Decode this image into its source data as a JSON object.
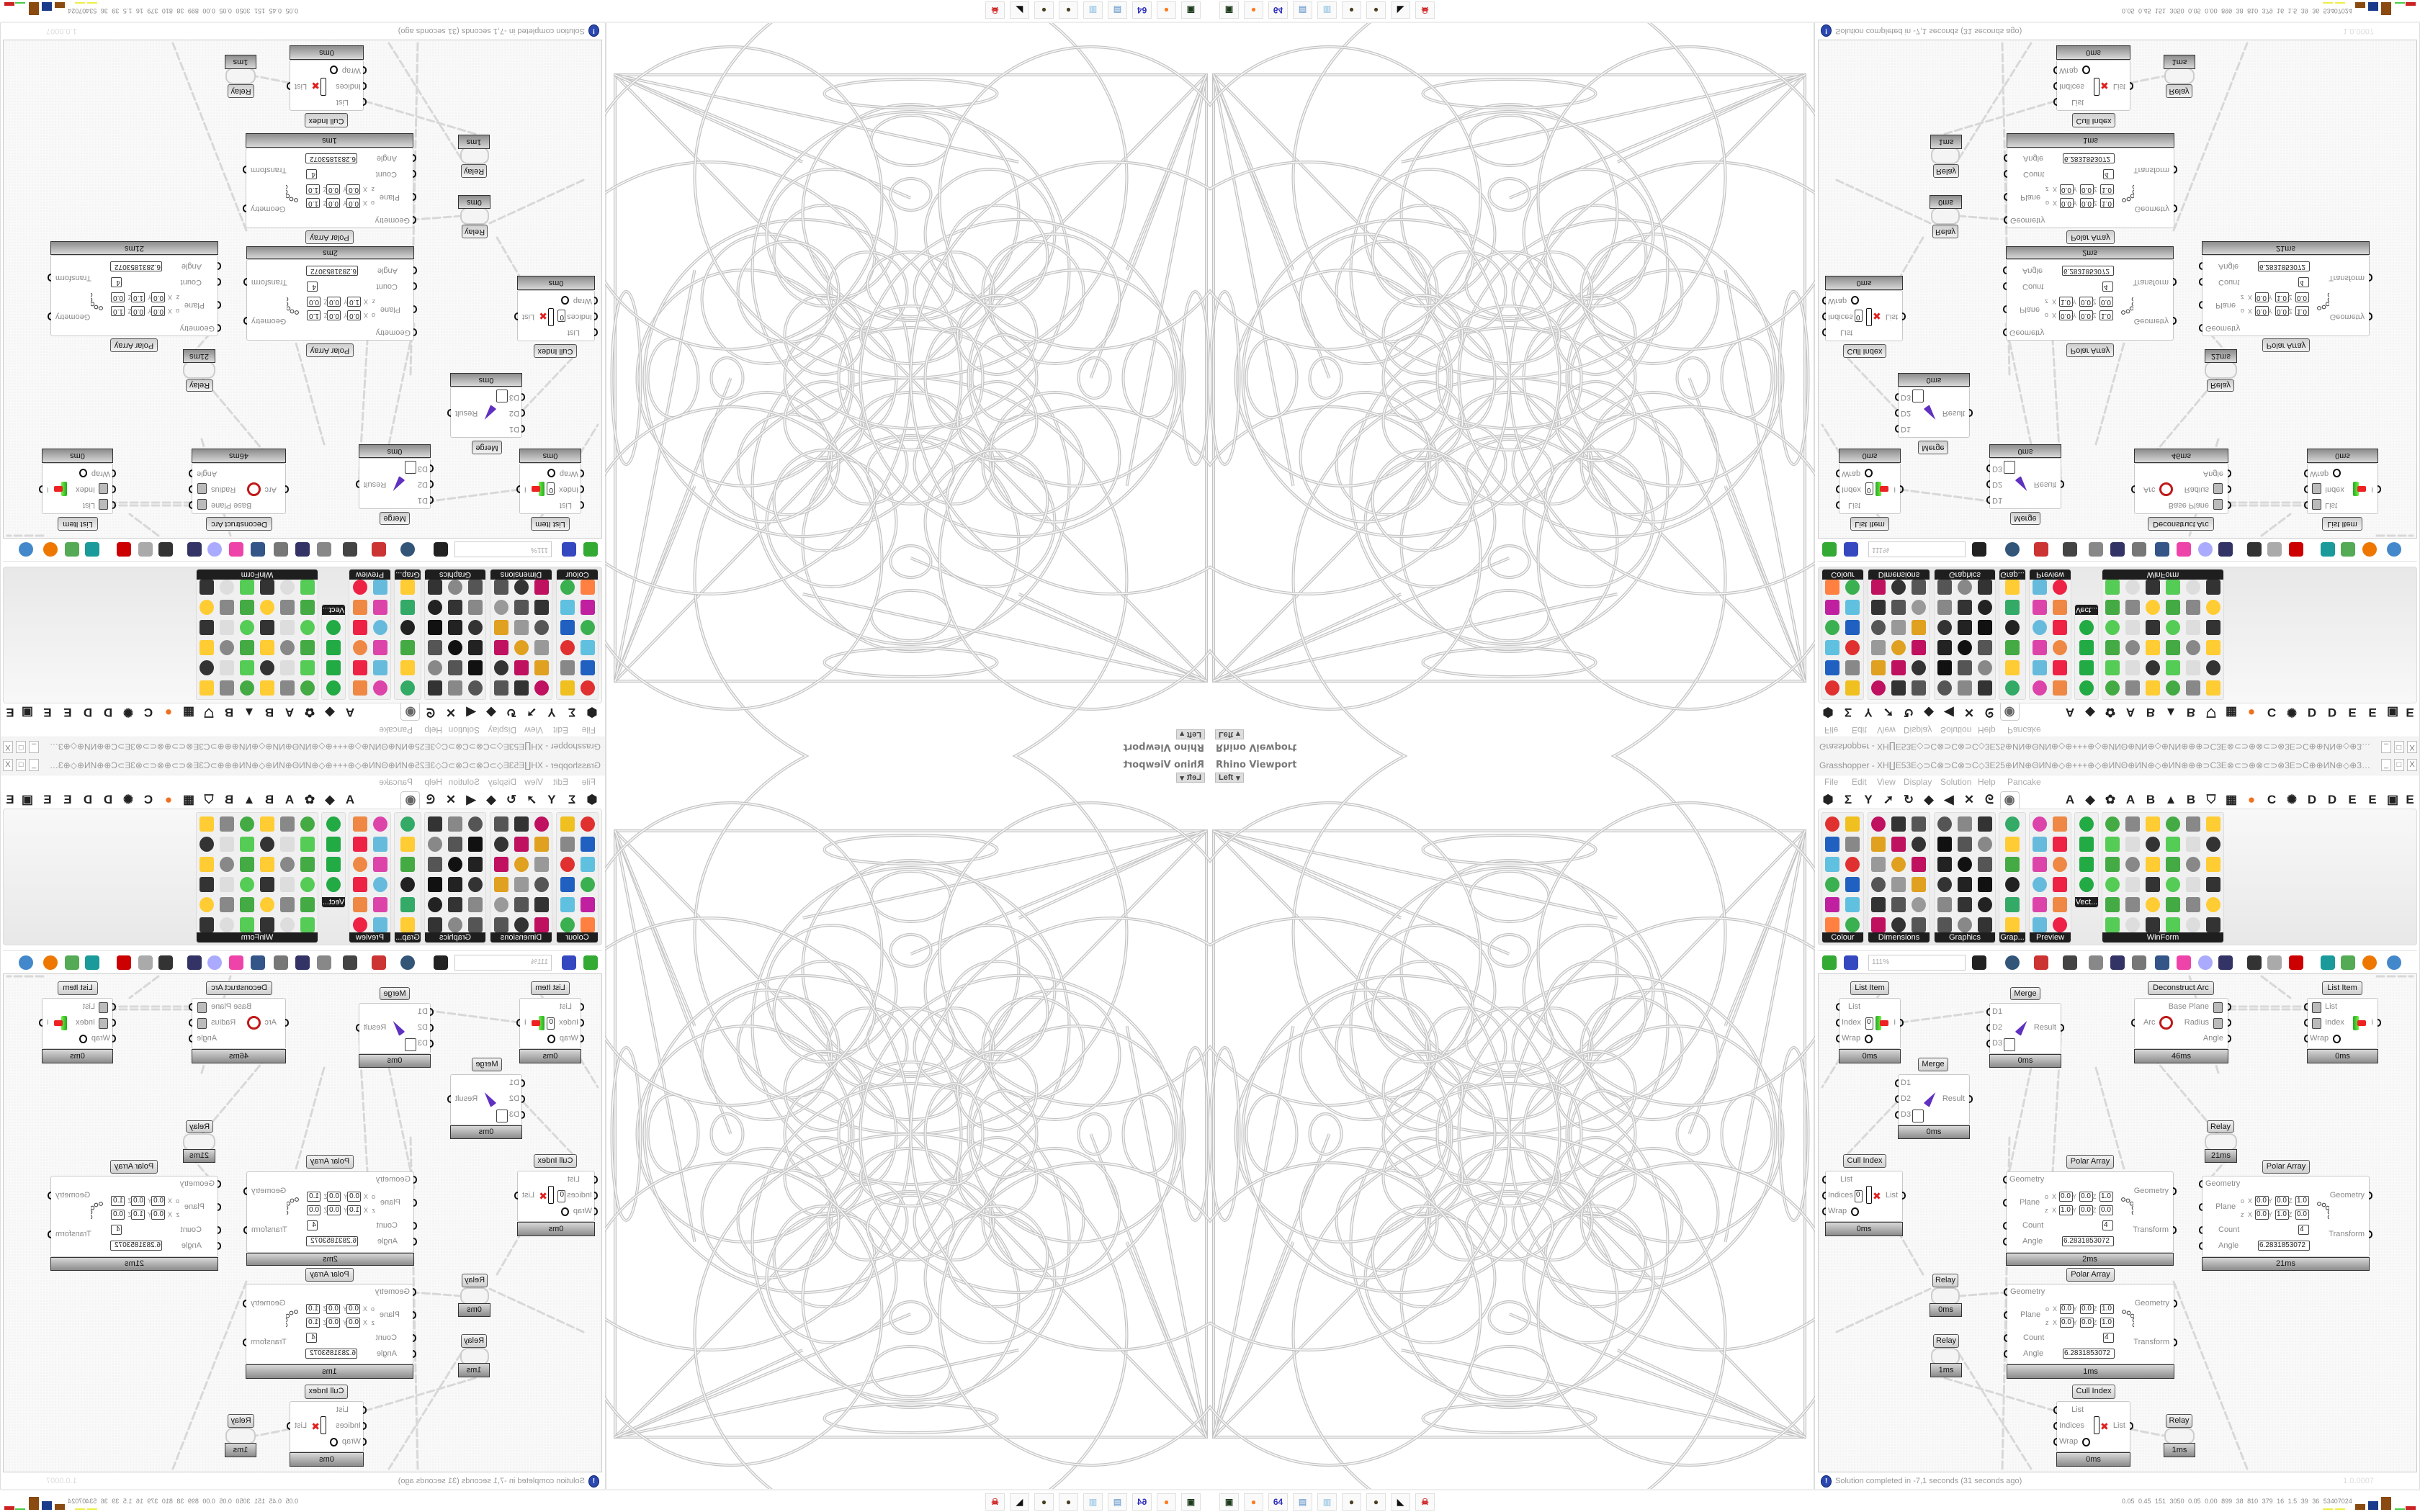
{
  "colors": {
    "accent": "#2a48b0",
    "node_title": "#d8d8d8",
    "node_footer": "#8c8c8c",
    "panel_label_bg": "#1e1e1e",
    "wire": "#d6d6d6",
    "geometry": "#c8c8c8",
    "error_red": "#e02020"
  },
  "viewport": {
    "title": "Rhino Viewport",
    "view": "Left",
    "dropdown_icon": "chevron-down-icon"
  },
  "grasshopper": {
    "title": "Grasshopper - XH∐E53E◇⊃C⊗⊃C⊗⊃C◇3E25⊕ИN⊕ΘИN⊕◇⊕+++⊕◇⊕ИNΘ⊕ИN⊕◇⊕ИN⊕⊕⊕⊃C3E⊗⊂⊃⊕⊗⊂⊃⊗3E⊃C⊕⊕ИN⊕◇⊕3E⊗3E⊞+25+⊞3E⊗3E⊕◇+⊗⊂⊃3E⊞+⊃C",
    "window_buttons": [
      "_",
      "□",
      "X"
    ],
    "menu": [
      "File",
      "Edit",
      "View",
      "Display",
      "Solution",
      "Help",
      "Pancake"
    ],
    "tab_icons": [
      "⬢",
      "Σ",
      "Y",
      "➚",
      "↻",
      "◆",
      "◀",
      "✕",
      "ᘓ",
      "◉",
      "A",
      "◆",
      "✿",
      "A",
      "B",
      "▲",
      "B",
      "⛉",
      "▦",
      "●",
      "C",
      "✺",
      "D",
      "D",
      "E",
      "E",
      "▣",
      "E"
    ],
    "panels": [
      {
        "label": "Colour"
      },
      {
        "label": "Dimensions"
      },
      {
        "label": "Graphics"
      },
      {
        "label": "Grap..."
      },
      {
        "label": "Preview"
      },
      {
        "label": "Vect..."
      },
      {
        "label": "WinForm"
      }
    ],
    "zoom": "111%",
    "plane_labels": {
      "origin": "o",
      "zaxis": "z",
      "x": "X",
      "y": "Y",
      "z": "Z"
    },
    "nodes": [
      {
        "title": "List Item",
        "inputs": [
          "List",
          "Index",
          "Wrap"
        ],
        "outputs": [
          "i"
        ],
        "footer": "0ms",
        "index_value": "0"
      },
      {
        "title": "Merge",
        "inputs": [
          "D1",
          "D2",
          "D3"
        ],
        "outputs": [
          "Result"
        ],
        "footer": "0ms"
      },
      {
        "title": "Merge",
        "inputs": [
          "D1",
          "D2",
          "D3"
        ],
        "outputs": [
          "Result"
        ],
        "footer": "0ms"
      },
      {
        "title": "Deconstruct Arc",
        "inputs": [
          "Arc"
        ],
        "outputs": [
          "Base Plane",
          "Radius",
          "Angle"
        ],
        "footer": "46ms"
      },
      {
        "title": "List Item",
        "inputs": [
          "List",
          "Index",
          "Wrap"
        ],
        "outputs": [
          "i"
        ],
        "footer": "0ms"
      },
      {
        "title": "Relay",
        "footer": "21ms"
      },
      {
        "title": "Cull Index",
        "inputs": [
          "List",
          "Indices",
          "Wrap"
        ],
        "outputs": [
          "List"
        ],
        "footer": "0ms",
        "index_value": "0"
      },
      {
        "title": "Polar Array",
        "inputs": [
          "Geometry",
          "Plane",
          "Count",
          "Angle"
        ],
        "outputs": [
          "Geometry",
          "Transform"
        ],
        "footer": "2ms",
        "plane_o": [
          "0.0",
          "0.0",
          "1.0"
        ],
        "plane_z": [
          "1.0",
          "0.0",
          "0.0"
        ],
        "count": "4",
        "angle": "6.2831853072"
      },
      {
        "title": "Polar Array",
        "inputs": [
          "Geometry",
          "Plane",
          "Count",
          "Angle"
        ],
        "outputs": [
          "Geometry",
          "Transform"
        ],
        "footer": "21ms",
        "plane_o": [
          "0.0",
          "0.0",
          "1.0"
        ],
        "plane_z": [
          "0.0",
          "1.0",
          "0.0"
        ],
        "count": "4",
        "angle": "6.2831853072"
      },
      {
        "title": "Relay",
        "footer": "0ms"
      },
      {
        "title": "Relay",
        "footer": "1ms"
      },
      {
        "title": "Polar Array",
        "inputs": [
          "Geometry",
          "Plane",
          "Count",
          "Angle"
        ],
        "outputs": [
          "Geometry",
          "Transform"
        ],
        "footer": "1ms",
        "plane_o": [
          "0.0",
          "0.0",
          "1.0"
        ],
        "plane_z": [
          "0.0",
          "0.0",
          "1.0"
        ],
        "count": "4",
        "angle": "6.2831853072"
      },
      {
        "title": "Cull Index",
        "inputs": [
          "List",
          "Indices",
          "Wrap"
        ],
        "outputs": [
          "List"
        ],
        "footer": "0ms"
      },
      {
        "title": "Relay",
        "footer": "1ms"
      }
    ],
    "status": "Solution completed in -7,1 seconds (31 seconds ago)",
    "version": "1.0.0007"
  },
  "taskbar": {
    "apps": [
      {
        "icon": "screen-recorder-icon",
        "glyph": "▣",
        "color": "#1a3a1a"
      },
      {
        "icon": "firefox-icon",
        "glyph": "●",
        "color": "#ff7a1a"
      },
      {
        "icon": "floppy-disk-icon",
        "glyph": "64",
        "color": "#3030c0"
      },
      {
        "icon": "notepad-scroll-icon",
        "glyph": "▤",
        "color": "#8ab0d8"
      },
      {
        "icon": "notepad-icon",
        "glyph": "▥",
        "color": "#a8d0e8"
      },
      {
        "icon": "cookie-icon",
        "glyph": "●",
        "color": "#4a4020"
      },
      {
        "icon": "cookie-icon",
        "glyph": "●",
        "color": "#4a4020"
      },
      {
        "icon": "wolf-icon",
        "glyph": "◣",
        "color": "#111111"
      },
      {
        "icon": "red-skull-icon",
        "glyph": "☠",
        "color": "#d02020"
      }
    ],
    "tray": "0.05 0.45 151 3050 0.05 0.00 899 38 810 379 16 1.5 39 36 53407024"
  }
}
